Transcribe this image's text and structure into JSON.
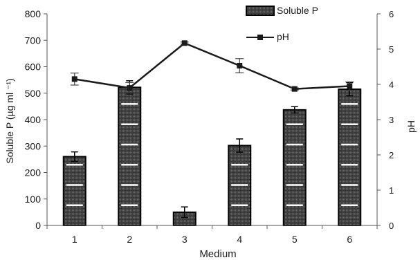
{
  "chart_data": {
    "type": "bar",
    "xlabel": "Medium",
    "ylabel_left": "Soluble P (µg ml ⁻¹)",
    "ylabel_right": "pH",
    "categories": [
      "1",
      "2",
      "3",
      "4",
      "5",
      "6"
    ],
    "ylim_left": [
      0,
      800
    ],
    "ylim_right": [
      0,
      6
    ],
    "yticks_left": [
      "0",
      "100",
      "200",
      "300",
      "400",
      "500",
      "600",
      "700",
      "800"
    ],
    "yticks_right": [
      "0",
      "1",
      "2",
      "3",
      "4",
      "5",
      "6"
    ],
    "grid": false,
    "legend_position": "top-right",
    "series": [
      {
        "name": "Soluble P",
        "kind": "bar",
        "axis": "left",
        "values": [
          260,
          522,
          50,
          302,
          437,
          515
        ],
        "errors": [
          18,
          25,
          20,
          25,
          12,
          25
        ]
      },
      {
        "name": "pH",
        "kind": "line",
        "axis": "right",
        "values": [
          4.15,
          3.9,
          5.17,
          4.53,
          3.87,
          3.95
        ],
        "errors": [
          0.17,
          0.15,
          0.03,
          0.2,
          0.03,
          0.12
        ]
      }
    ],
    "colors": {
      "bar_fill": "#3a3a3a",
      "bar_stripe": "#ffffff",
      "line": "#1a1a1a"
    }
  }
}
